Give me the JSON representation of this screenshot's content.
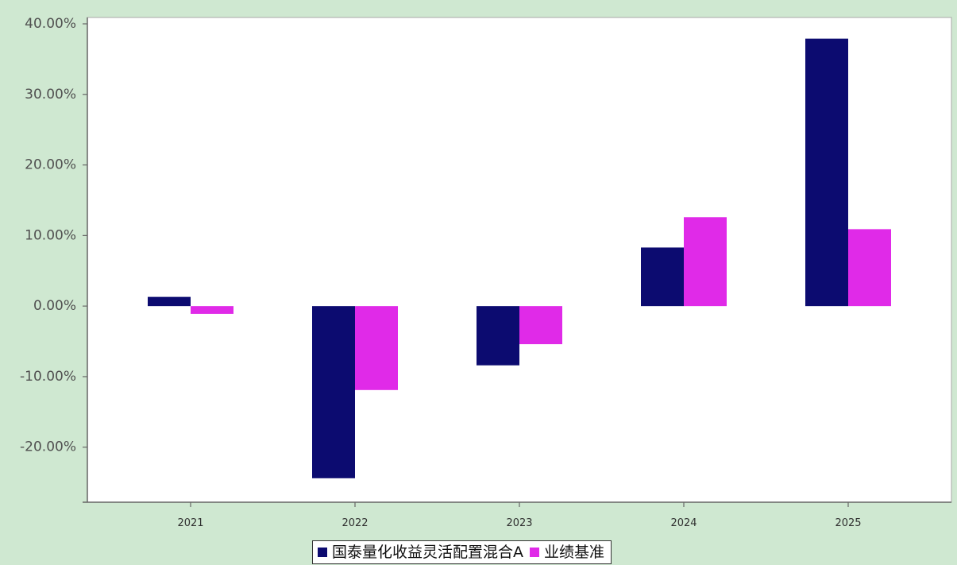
{
  "chart_data": {
    "type": "bar",
    "categories": [
      "2021",
      "2022",
      "2023",
      "2024",
      "2025"
    ],
    "series": [
      {
        "name": "国泰量化收益灵活配置混合A",
        "color": "#0c0b70",
        "values": [
          1.3,
          -24.4,
          -8.4,
          8.3,
          37.9
        ]
      },
      {
        "name": "业绩基准",
        "color": "#e02ae8",
        "values": [
          -1.1,
          -11.9,
          -5.4,
          12.6,
          10.9
        ]
      }
    ],
    "y_ticks": [
      {
        "value": 40,
        "label": "40.00%"
      },
      {
        "value": 30,
        "label": "30.00%"
      },
      {
        "value": 20,
        "label": "20.00%"
      },
      {
        "value": 10,
        "label": "10.00%"
      },
      {
        "value": 0,
        "label": "0.00%"
      },
      {
        "value": -10,
        "label": "-10.00%"
      },
      {
        "value": -20,
        "label": "-20.00%"
      }
    ],
    "ylim": [
      -27.8,
      40.9
    ],
    "grid": false,
    "legend": "bottom-center"
  }
}
